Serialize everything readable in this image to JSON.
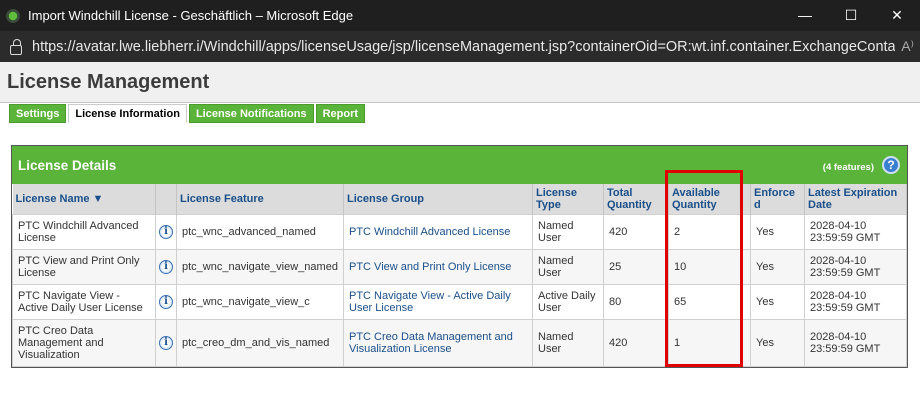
{
  "window": {
    "title": "Import Windchill License - Geschäftlich – Microsoft Edge",
    "minimize": "—",
    "maximize": "☐",
    "close": "✕"
  },
  "address": {
    "url": "https://avatar.lwe.liebherr.i/Windchill/apps/licenseUsage/jsp/licenseManagement.jsp?containerOid=OR:wt.inf.container.ExchangeContai...",
    "read_aloud": "A⁾"
  },
  "page": {
    "title": "License Management"
  },
  "tabs": [
    {
      "label": "Settings"
    },
    {
      "label": "License Information",
      "active": true
    },
    {
      "label": "License Notifications"
    },
    {
      "label": "Report"
    }
  ],
  "panel": {
    "title": "License Details",
    "count": "(4 features)",
    "help": "?"
  },
  "columns": [
    "License Name ▼",
    "",
    "License Feature",
    "License Group",
    "License Type",
    "Total Quantity",
    "Available Quantity",
    "Enforced",
    "Latest Expiration Date"
  ],
  "rows": [
    {
      "name": "PTC Windchill Advanced License",
      "feature": "ptc_wnc_advanced_named",
      "group": "PTC Windchill Advanced License",
      "type": "Named User",
      "total": "420",
      "available": "2",
      "enforced": "Yes",
      "date": "2028-04-10 23:59:59 GMT"
    },
    {
      "name": "PTC View and Print Only License",
      "feature": "ptc_wnc_navigate_view_named",
      "group": "PTC View and Print Only License",
      "type": "Named User",
      "total": "25",
      "available": "10",
      "enforced": "Yes",
      "date": "2028-04-10 23:59:59 GMT"
    },
    {
      "name": "PTC Navigate View - Active Daily User License",
      "feature": "ptc_wnc_navigate_view_c",
      "group": "PTC Navigate View - Active Daily User License",
      "type": "Active Daily User",
      "total": "80",
      "available": "65",
      "enforced": "Yes",
      "date": "2028-04-10 23:59:59 GMT"
    },
    {
      "name": "PTC Creo Data Management and Visualization",
      "feature": "ptc_creo_dm_and_vis_named",
      "group": "PTC Creo Data Management and Visualization License",
      "type": "Named User",
      "total": "420",
      "available": "1",
      "enforced": "Yes",
      "date": "2028-04-10 23:59:59 GMT"
    }
  ],
  "info_icon": "i",
  "colors": {
    "green": "#5bb43a",
    "link": "#1a4f8a",
    "highlight": "#e00000"
  }
}
